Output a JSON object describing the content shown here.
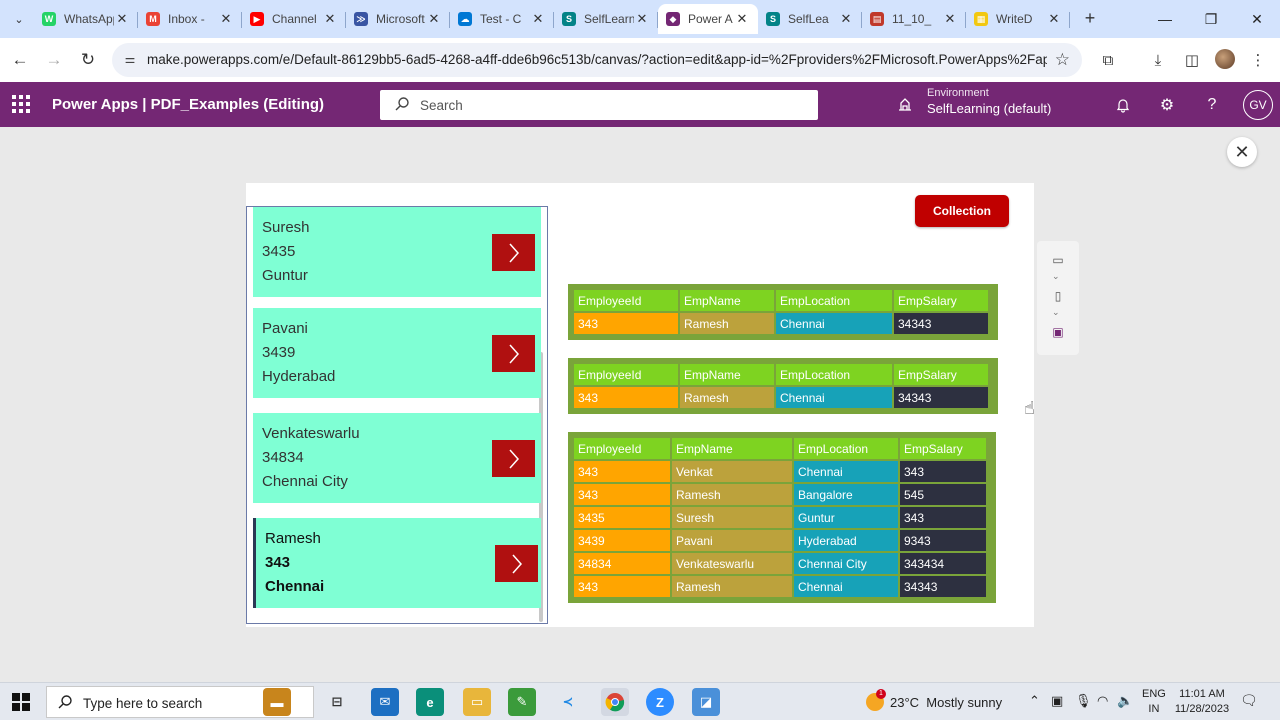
{
  "browser": {
    "tabs": [
      {
        "title": "WhatsApp",
        "fav_color": "#25d366",
        "fav_glyph": "W"
      },
      {
        "title": "Inbox -",
        "fav_color": "#ea4335",
        "fav_glyph": "M"
      },
      {
        "title": "Channel",
        "fav_color": "#ff0000",
        "fav_glyph": "▶"
      },
      {
        "title": "Microsoft",
        "fav_color": "#3955a3",
        "fav_glyph": "≫"
      },
      {
        "title": "Test - C",
        "fav_color": "#0078d4",
        "fav_glyph": "☁"
      },
      {
        "title": "SelfLearn",
        "fav_color": "#038387",
        "fav_glyph": "S"
      },
      {
        "title": "Power A",
        "fav_color": "#742774",
        "fav_glyph": "◆",
        "active": true
      },
      {
        "title": "SelfLea",
        "fav_color": "#038387",
        "fav_glyph": "S"
      },
      {
        "title": "11_10_",
        "fav_color": "#c0392b",
        "fav_glyph": "▤"
      },
      {
        "title": "WriteD",
        "fav_color": "#f2c811",
        "fav_glyph": "▦"
      }
    ],
    "url": "make.powerapps.com/e/Default-86129bb5-6ad5-4268-a4ff-dde6b96c513b/canvas/?action=edit&app-id=%2Fproviders%2FMicrosoft.PowerApps%2Fapp..."
  },
  "header": {
    "app_title": "Power Apps  |  PDF_Examples (Editing)",
    "search_placeholder": "Search",
    "environment_label": "Environment",
    "environment_value": "SelfLearning (default)",
    "avatar_initials": "GV"
  },
  "gallery": {
    "items": [
      {
        "name": "Suresh",
        "id": "3435",
        "location": "Guntur"
      },
      {
        "name": "Pavani",
        "id": "3439",
        "location": "Hyderabad"
      },
      {
        "name": "Venkateswarlu",
        "id": "34834",
        "location": "Chennai City"
      },
      {
        "name": "Ramesh",
        "id": "343",
        "location": "Chennai"
      }
    ]
  },
  "collection_button": "Collection",
  "tables": {
    "headers": [
      "EmployeeId",
      "EmpName",
      "EmpLocation",
      "EmpSalary"
    ],
    "table1": [
      [
        "343",
        "Ramesh",
        "Chennai",
        "34343"
      ]
    ],
    "table2": [
      [
        "343",
        "Ramesh",
        "Chennai",
        "34343"
      ]
    ],
    "table3": [
      [
        "343",
        "Venkat",
        "Chennai",
        "343"
      ],
      [
        "343",
        "Ramesh",
        "Bangalore",
        "545"
      ],
      [
        "3435",
        "Suresh",
        "Guntur",
        "343"
      ],
      [
        "3439",
        "Pavani",
        "Hyderabad",
        "9343"
      ],
      [
        "34834",
        "Venkateswarlu",
        "Chennai City",
        "343434"
      ],
      [
        "343",
        "Ramesh",
        "Chennai",
        "34343"
      ]
    ]
  },
  "taskbar": {
    "search_placeholder": "Type here to search",
    "weather_temp": "23°C",
    "weather_text": "Mostly sunny",
    "weather_badge": "1",
    "lang_top": "ENG",
    "lang_bottom": "IN",
    "time": "11:01 AM",
    "date": "11/28/2023"
  }
}
